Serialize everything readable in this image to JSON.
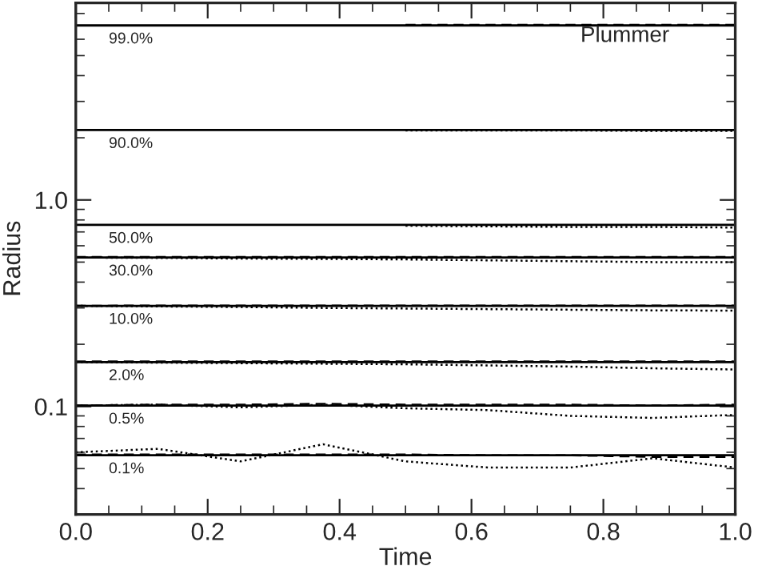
{
  "chart_data": {
    "type": "line",
    "xlabel": "Time",
    "ylabel": "Radius",
    "log": "y",
    "xlim": [
      0,
      1
    ],
    "ylim": [
      0.03,
      9
    ],
    "xticks": [
      {
        "value": 0,
        "label": "0.0"
      },
      {
        "value": 0.2,
        "label": "0.2"
      },
      {
        "value": 0.4,
        "label": "0.4"
      },
      {
        "value": 0.6,
        "label": "0.6"
      },
      {
        "value": 0.8,
        "label": "0.8"
      },
      {
        "value": 1,
        "label": "1.0"
      }
    ],
    "yticks": [
      {
        "value": 0.1,
        "label": "0.1"
      },
      {
        "value": 1,
        "label": "1.0"
      }
    ],
    "grid": false,
    "legend": false,
    "marker": "none",
    "x": [
      0,
      0.125,
      0.25,
      0.375,
      0.5,
      0.625,
      0.75,
      0.875,
      1
    ],
    "series": [
      {
        "color": "#000000",
        "line_style": "solid",
        "values": [
          7.0,
          7.0,
          7.0,
          7.0,
          7.0,
          7.0,
          7.0,
          7.0,
          7.0
        ]
      },
      {
        "color": "#000000",
        "line_style": "dashed",
        "values": [
          null,
          null,
          null,
          null,
          7.05,
          7.05,
          7.05,
          7.05,
          7.05
        ]
      },
      {
        "color": "#000000",
        "line_style": "solid",
        "values": [
          2.18,
          2.18,
          2.18,
          2.18,
          2.18,
          2.18,
          2.18,
          2.18,
          2.18
        ]
      },
      {
        "color": "#000000",
        "line_style": "dotted",
        "values": [
          null,
          null,
          null,
          null,
          2.17,
          2.17,
          2.17,
          2.16,
          2.16
        ]
      },
      {
        "color": "#000000",
        "line_style": "solid",
        "values": [
          0.757,
          0.757,
          0.757,
          0.757,
          0.757,
          0.757,
          0.757,
          0.757,
          0.757
        ]
      },
      {
        "color": "#000000",
        "line_style": "dotted",
        "values": [
          null,
          null,
          null,
          null,
          0.75,
          0.745,
          0.74,
          0.74,
          0.735
        ]
      },
      {
        "color": "#000000",
        "line_style": "solid",
        "values": [
          0.526,
          0.526,
          0.526,
          0.526,
          0.526,
          0.526,
          0.526,
          0.526,
          0.526
        ]
      },
      {
        "color": "#000000",
        "line_style": "dashed",
        "values": [
          0.529,
          0.529,
          0.529,
          0.529,
          0.529,
          0.529,
          0.529,
          0.529,
          0.529
        ]
      },
      {
        "color": "#000000",
        "line_style": "dotted",
        "values": [
          0.526,
          0.524,
          0.52,
          0.518,
          0.515,
          0.51,
          0.505,
          0.5,
          0.5
        ]
      },
      {
        "color": "#000000",
        "line_style": "solid",
        "values": [
          0.307,
          0.307,
          0.307,
          0.307,
          0.307,
          0.307,
          0.307,
          0.307,
          0.307
        ]
      },
      {
        "color": "#000000",
        "line_style": "dashed",
        "values": [
          0.307,
          0.308,
          0.308,
          0.308,
          0.308,
          0.308,
          0.308,
          0.308,
          0.308
        ]
      },
      {
        "color": "#000000",
        "line_style": "dotted",
        "values": [
          0.307,
          0.305,
          0.303,
          0.3,
          0.298,
          0.296,
          0.294,
          0.292,
          0.291
        ]
      },
      {
        "color": "#000000",
        "line_style": "solid",
        "values": [
          0.164,
          0.164,
          0.164,
          0.164,
          0.164,
          0.164,
          0.164,
          0.164,
          0.164
        ]
      },
      {
        "color": "#000000",
        "line_style": "dashed",
        "values": [
          0.165,
          0.165,
          0.165,
          0.165,
          0.165,
          0.165,
          0.165,
          0.165,
          0.165
        ]
      },
      {
        "color": "#000000",
        "line_style": "dotted",
        "values": [
          0.164,
          0.163,
          0.162,
          0.161,
          0.16,
          0.158,
          0.156,
          0.153,
          0.151
        ]
      },
      {
        "color": "#000000",
        "line_style": "solid",
        "values": [
          0.101,
          0.101,
          0.101,
          0.101,
          0.101,
          0.101,
          0.101,
          0.101,
          0.101
        ]
      },
      {
        "color": "#000000",
        "line_style": "dashed",
        "values": [
          0.101,
          0.102,
          0.102,
          0.103,
          0.102,
          0.102,
          0.102,
          0.101,
          0.102
        ]
      },
      {
        "color": "#000000",
        "line_style": "dotted",
        "values": [
          0.101,
          0.102,
          0.099,
          0.102,
          0.098,
          0.096,
          0.09,
          0.088,
          0.091
        ]
      },
      {
        "color": "#000000",
        "line_style": "solid",
        "values": [
          0.058,
          0.058,
          0.058,
          0.058,
          0.058,
          0.058,
          0.058,
          0.058,
          0.058
        ]
      },
      {
        "color": "#000000",
        "line_style": "dashed",
        "values": [
          0.0585,
          0.0585,
          0.0585,
          0.0585,
          0.0585,
          0.058,
          0.058,
          0.057,
          0.057
        ]
      },
      {
        "color": "#000000",
        "line_style": "dotted",
        "values": [
          0.06,
          0.0623,
          0.0542,
          0.0656,
          0.0542,
          0.0506,
          0.0506,
          0.0561,
          0.0506
        ]
      }
    ],
    "annotations": [
      {
        "text": "99.0%",
        "y": 7.0
      },
      {
        "text": "90.0%",
        "y": 2.18
      },
      {
        "text": "50.0%",
        "y": 0.757
      },
      {
        "text": "30.0%",
        "y": 0.526
      },
      {
        "text": "10.0%",
        "y": 0.307
      },
      {
        "text": "2.0%",
        "y": 0.164
      },
      {
        "text": "0.5%",
        "y": 0.101
      },
      {
        "text": "0.1%",
        "y": 0.058
      },
      "Plummer"
    ]
  }
}
